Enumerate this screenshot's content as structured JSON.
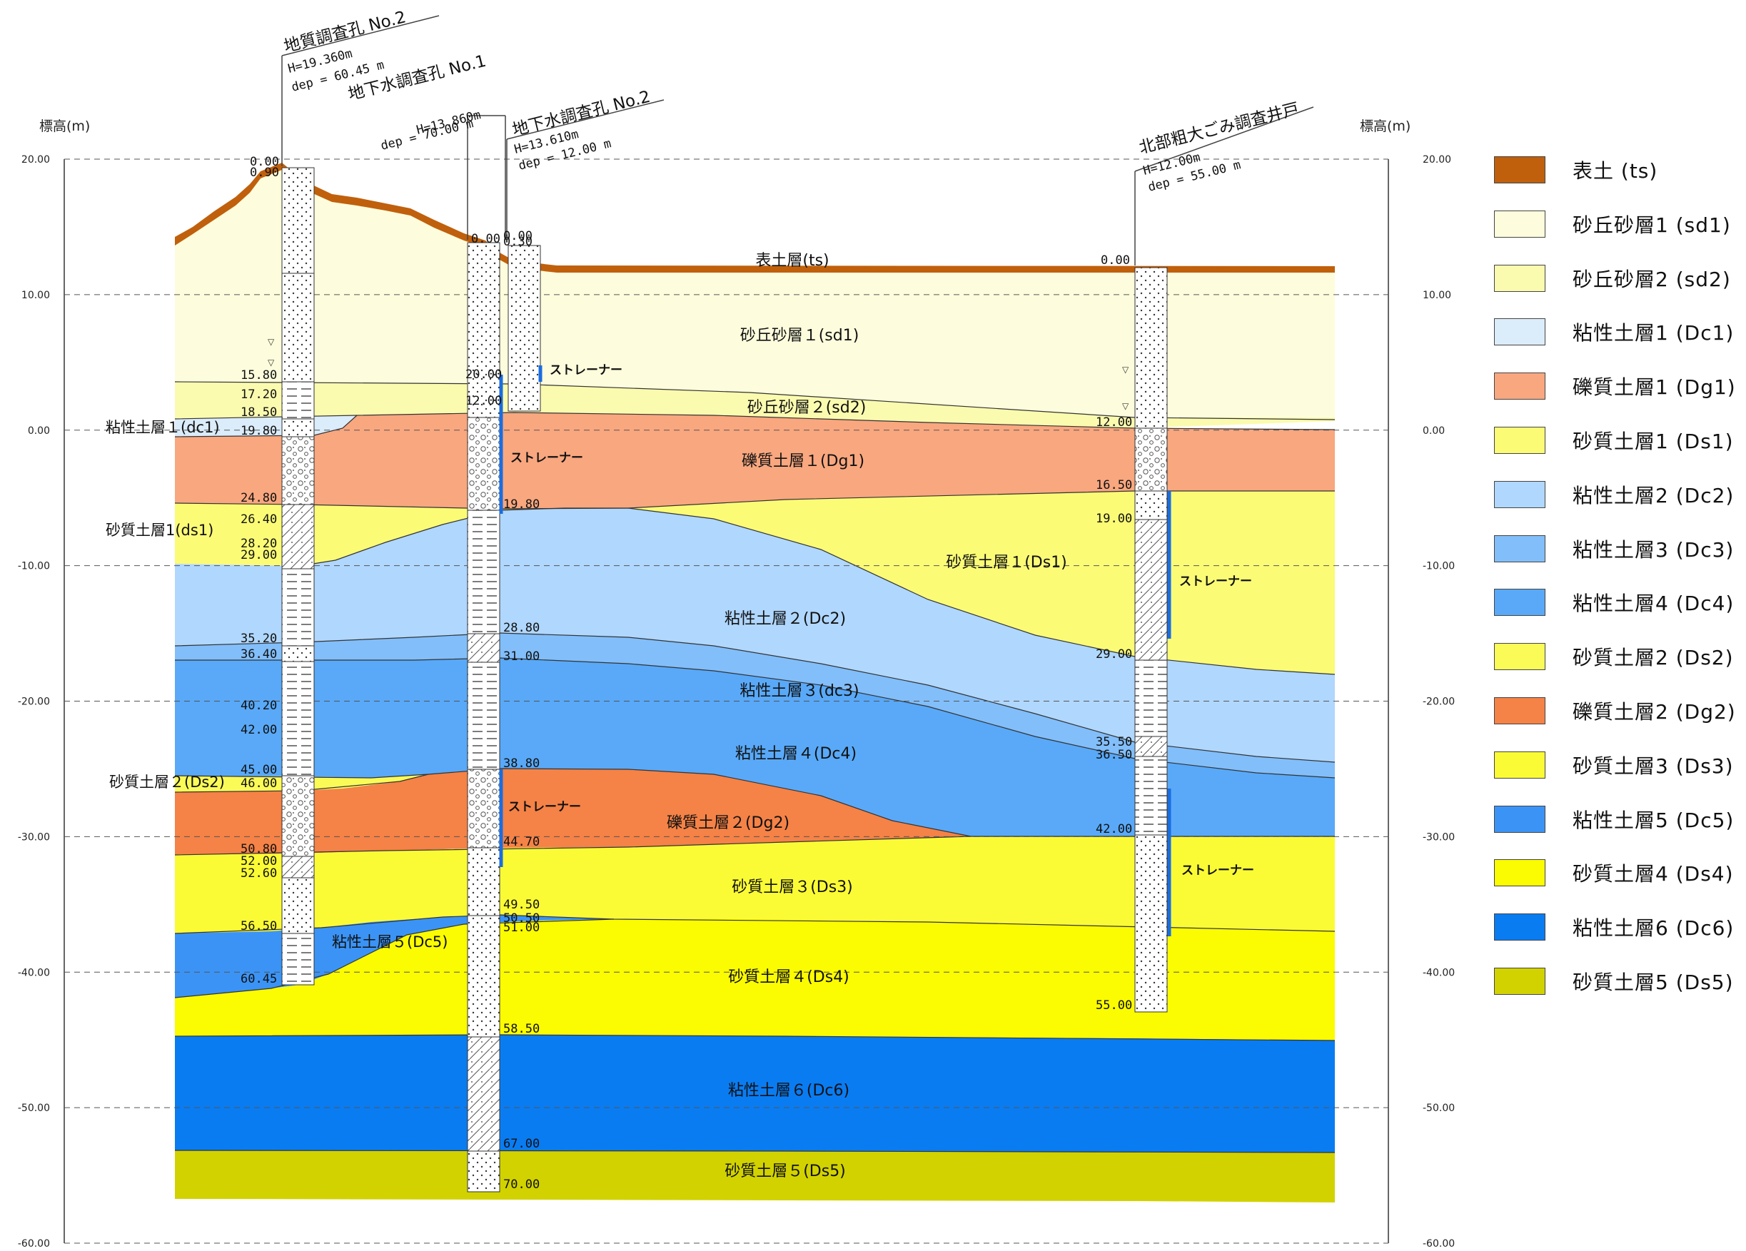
{
  "axis": {
    "title_left": "標高(m)",
    "title_right": "標高(m)",
    "ticks": [
      "20.00",
      "10.00",
      "0.00",
      "-10.00",
      "-20.00",
      "-30.00",
      "-40.00",
      "-50.00",
      "-60.00"
    ]
  },
  "layers": [
    {
      "id": "ts",
      "label": "表土層(ts)",
      "color": "#c0600c"
    },
    {
      "id": "sd1",
      "label": "砂丘砂層１(sd1)",
      "color": "#fdfddd"
    },
    {
      "id": "sd2",
      "label": "砂丘砂層２(sd2)",
      "color": "#fbfbb0"
    },
    {
      "id": "dc1",
      "label": "粘性土層１(dc1)",
      "color": "#dbecfb"
    },
    {
      "id": "dg1",
      "label": "礫質土層１(Dg1)",
      "color": "#f9a77f"
    },
    {
      "id": "ds1",
      "label": "砂質土層１(Ds1)",
      "color": "#fbfb76"
    },
    {
      "id": "dc2",
      "label": "粘性土層２(Dc2)",
      "color": "#b0d7fd"
    },
    {
      "id": "dc3",
      "label": "粘性土層３(dc3)",
      "color": "#82befa"
    },
    {
      "id": "dc4",
      "label": "粘性土層４(Dc4)",
      "color": "#59a9f8"
    },
    {
      "id": "ds2",
      "label": "砂質土層２(Ds2)",
      "color": "#fbfb58"
    },
    {
      "id": "dg2",
      "label": "礫質土層２(Dg2)",
      "color": "#f58246"
    },
    {
      "id": "ds3",
      "label": "砂質土層３(Ds3)",
      "color": "#fbfb35"
    },
    {
      "id": "dc5",
      "label": "粘性土層５(Dc5)",
      "color": "#3b94f5"
    },
    {
      "id": "ds4",
      "label": "砂質土層４(Ds4)",
      "color": "#fbfb02"
    },
    {
      "id": "dc6",
      "label": "粘性土層６(Dc6)",
      "color": "#0a7cf2"
    },
    {
      "id": "ds5",
      "label": "砂質土層５(Ds5)",
      "color": "#d2d200"
    }
  ],
  "side_labels": {
    "dc1": "粘性土層１(dc1)",
    "ds1": "砂質土層1(ds1)",
    "ds2": "砂質土層２(Ds2)",
    "dc5": "粘性土層５(Dc5)"
  },
  "boreholes": [
    {
      "name": "地質調査孔 No.2",
      "h": "H=19.360m",
      "dep": "dep = 60.45 m",
      "depths": [
        "0.00",
        "0.90",
        "15.80",
        "17.20",
        "18.50",
        "19.80",
        "24.80",
        "26.40",
        "28.20",
        "29.00",
        "35.20",
        "36.40",
        "40.20",
        "42.00",
        "45.00",
        "46.00",
        "50.80",
        "52.00",
        "52.60",
        "56.50",
        "60.45"
      ]
    },
    {
      "name": "地下水調査孔 No.1",
      "h": "H=13.860m",
      "dep": "dep = 70.00 m",
      "depths": [
        "0.00",
        "20.00",
        "12.00",
        "19.80",
        "28.80",
        "31.00",
        "38.80",
        "44.70",
        "49.50",
        "50.50",
        "51.00",
        "58.50",
        "67.00",
        "70.00"
      ]
    },
    {
      "name": "地下水調査孔 No.2",
      "h": "H=13.610m",
      "dep": "dep = 12.00 m",
      "depths": [
        "0.00",
        "0.30"
      ]
    },
    {
      "name": "北部粗大ごみ調査井戸",
      "h": "H=12.00m",
      "dep": "dep = 55.00 m",
      "depths": [
        "0.00",
        "12.00",
        "16.50",
        "19.00",
        "29.00",
        "35.50",
        "36.50",
        "42.00",
        "55.00"
      ]
    }
  ],
  "strainer_label": "ストレーナー",
  "legend": [
    {
      "label": "表土 (ts)",
      "color": "#c0600c"
    },
    {
      "label": "砂丘砂層1 (sd1)",
      "color": "#fdfddd"
    },
    {
      "label": "砂丘砂層2 (sd2)",
      "color": "#fbfbb0"
    },
    {
      "label": "粘性土層1 (Dc1)",
      "color": "#dbecfb"
    },
    {
      "label": "礫質土層1 (Dg1)",
      "color": "#f9a77f"
    },
    {
      "label": "砂質土層1 (Ds1)",
      "color": "#fbfb76"
    },
    {
      "label": "粘性土層2 (Dc2)",
      "color": "#b0d7fd"
    },
    {
      "label": "粘性土層3 (Dc3)",
      "color": "#82befa"
    },
    {
      "label": "粘性土層4 (Dc4)",
      "color": "#59a9f8"
    },
    {
      "label": "砂質土層2 (Ds2)",
      "color": "#fbfb58"
    },
    {
      "label": "礫質土層2 (Dg2)",
      "color": "#f58246"
    },
    {
      "label": "砂質土層3 (Ds3)",
      "color": "#fbfb35"
    },
    {
      "label": "粘性土層5 (Dc5)",
      "color": "#3b94f5"
    },
    {
      "label": "砂質土層4 (Ds4)",
      "color": "#fbfb02"
    },
    {
      "label": "粘性土層6 (Dc6)",
      "color": "#0a7cf2"
    },
    {
      "label": "砂質土層5 (Ds5)",
      "color": "#d2d200"
    }
  ]
}
